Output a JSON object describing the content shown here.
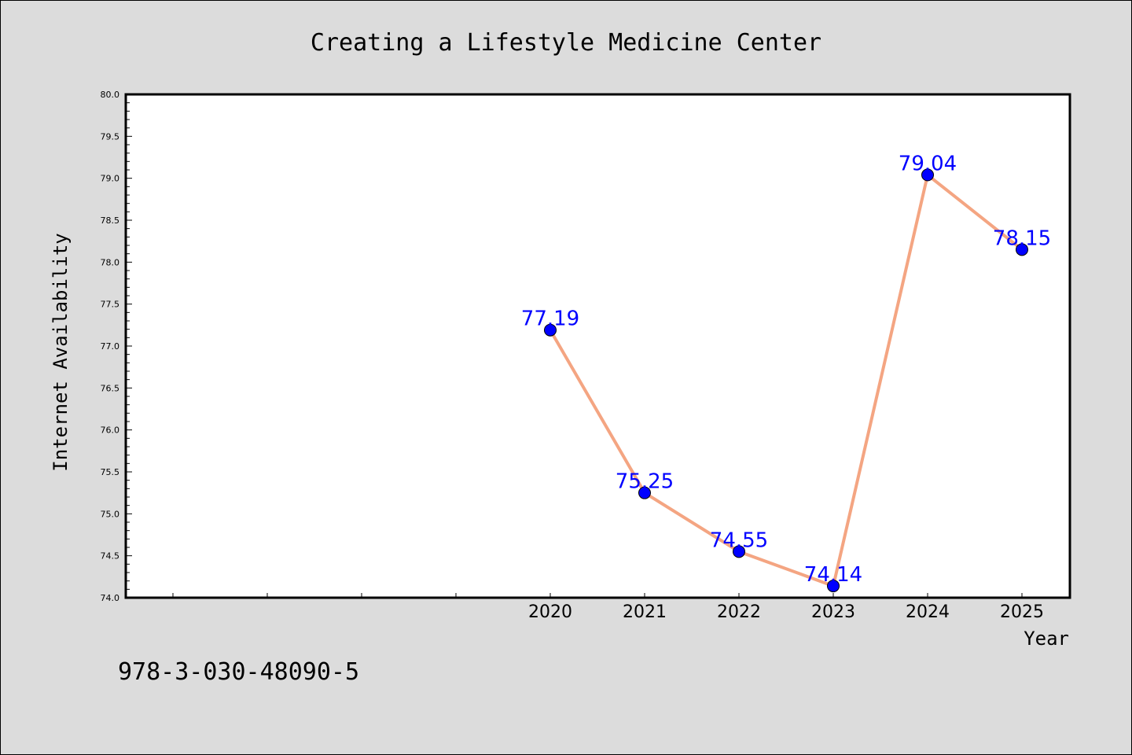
{
  "chart_data": {
    "type": "line",
    "title": "Creating a Lifestyle Medicine Center",
    "xlabel": "Year",
    "ylabel": "Internet Availability",
    "x": [
      2020,
      2021,
      2022,
      2023,
      2024,
      2025
    ],
    "x_tick_labels": [
      "2020",
      "2021",
      "2022",
      "2023",
      "2024",
      "2025"
    ],
    "x_range": [
      2015.5,
      2025.5
    ],
    "y_ticks": [
      "74.0",
      "74.5",
      "75.0",
      "75.5",
      "76.0",
      "76.5",
      "77.0",
      "77.5",
      "78.0",
      "78.5",
      "79.0",
      "79.5",
      "80.0"
    ],
    "ylim": [
      74.0,
      80.0
    ],
    "series": [
      {
        "values": [
          77.19,
          75.25,
          74.55,
          74.14,
          79.04,
          78.15
        ],
        "data_labels": [
          "77.19",
          "75.25",
          "74.55",
          "74.14",
          "79.04",
          "78.15"
        ],
        "line_color": "#f4a582",
        "marker_color": "#0000ff"
      }
    ],
    "data_label_color": "#0000ff",
    "grid": false,
    "legend": "none"
  },
  "footer_text": "978-3-030-48090-5",
  "colors": {
    "background": "#dcdcdc",
    "plot_background": "#ffffff",
    "axis": "#000000"
  }
}
